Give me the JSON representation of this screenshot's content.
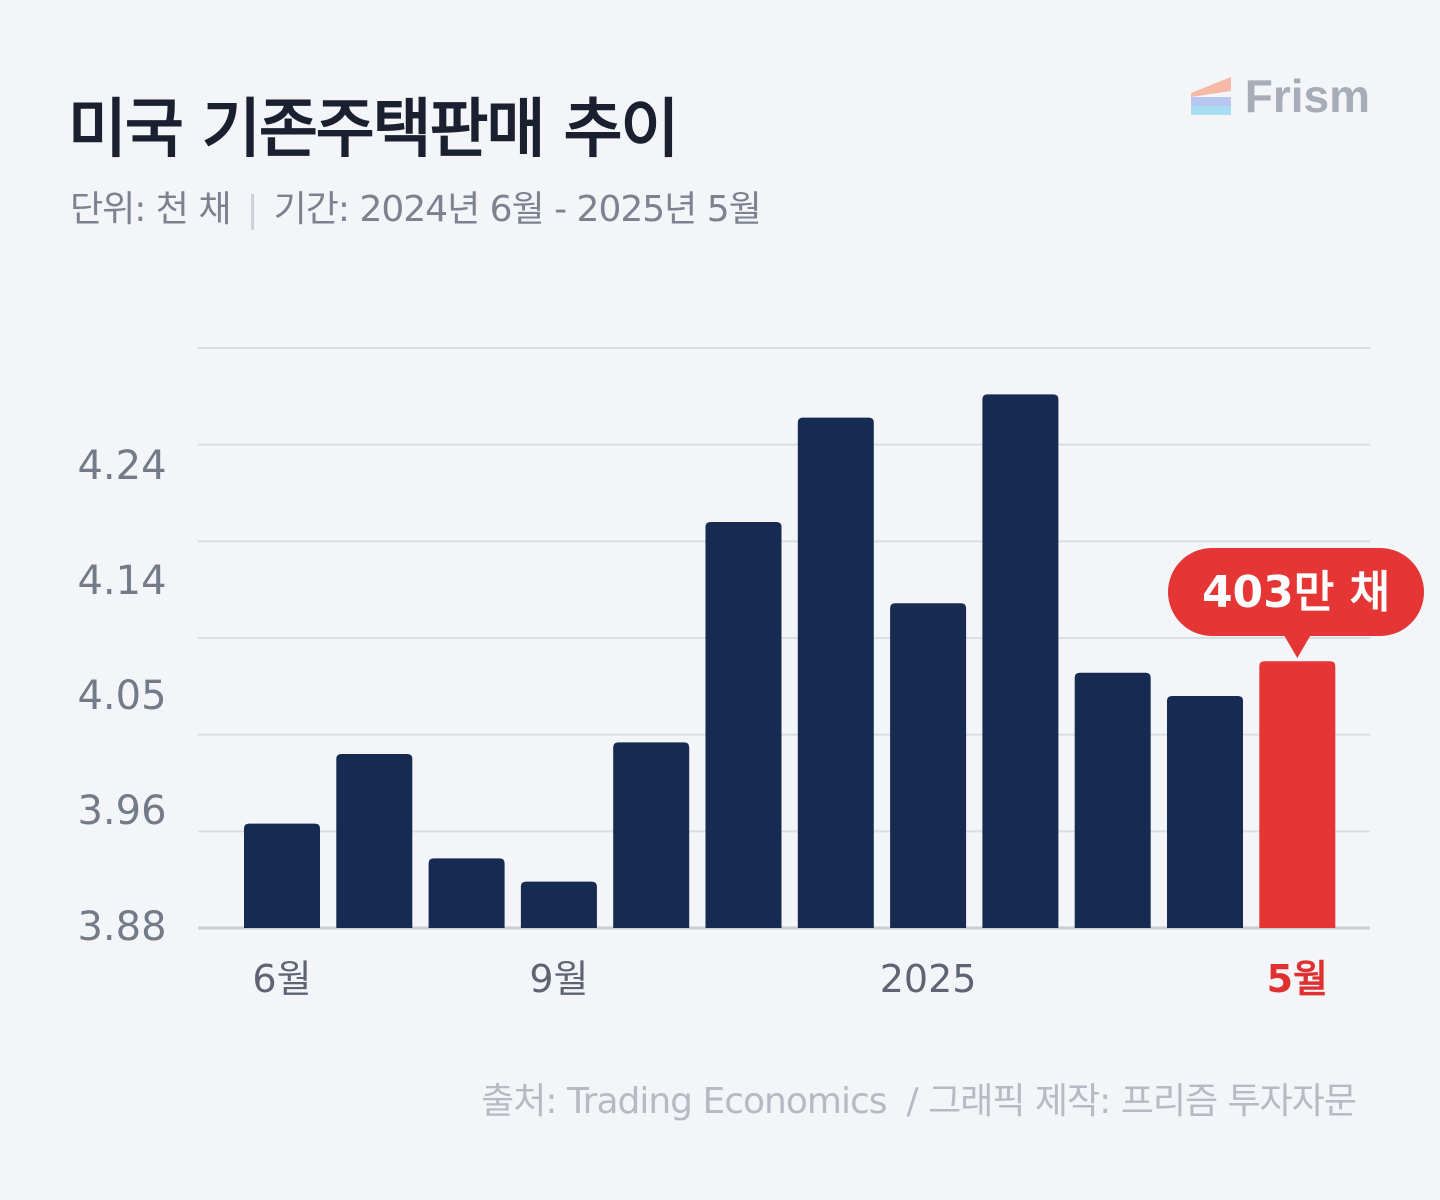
{
  "header": {
    "title": "미국 기존주택판매 추이",
    "unit": "단위: 천 채",
    "period": "기간: 2024년 6월 - 2025년 5월"
  },
  "logo": {
    "text": "Frism"
  },
  "footer": {
    "source": "출처: Trading Economics",
    "credit": "/ 그래픽 제작: 프리즘 투자자문"
  },
  "colors": {
    "bar": "#172a52",
    "highlight": "#e53535",
    "grid": "#d9dde4",
    "axis": "#c8ccd4"
  },
  "chart_data": {
    "type": "bar",
    "title": "미국 기존주택판매 추이",
    "categories": [
      "2024-06",
      "2024-07",
      "2024-08",
      "2024-09",
      "2024-10",
      "2024-11",
      "2024-12",
      "2025-01",
      "2025-02",
      "2025-03",
      "2025-04",
      "2025-05"
    ],
    "values": [
      3.89,
      3.95,
      3.86,
      3.84,
      3.96,
      4.15,
      4.24,
      4.08,
      4.26,
      4.02,
      4.0,
      4.03
    ],
    "x_tick_labels": [
      {
        "index": 0,
        "label": "6월"
      },
      {
        "index": 3,
        "label": "9월"
      },
      {
        "index": 7,
        "label": "2025"
      },
      {
        "index": 11,
        "label": "5월"
      }
    ],
    "y_tick_labels": [
      "3.88",
      "3.96",
      "4.05",
      "4.14",
      "4.24"
    ],
    "ylim": [
      3.8,
      4.3
    ],
    "highlight_index": 11,
    "callout": "403만 채",
    "grid": true,
    "xlabel": "",
    "ylabel": ""
  }
}
